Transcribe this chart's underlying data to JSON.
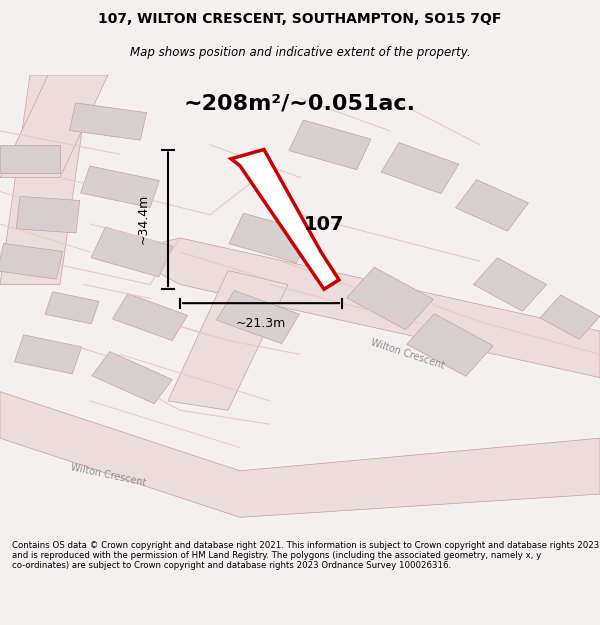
{
  "title_line1": "107, WILTON CRESCENT, SOUTHAMPTON, SO15 7QF",
  "title_line2": "Map shows position and indicative extent of the property.",
  "area_text": "~208m²/~0.051ac.",
  "label_107": "107",
  "dim_vertical": "~34.4m",
  "dim_horizontal": "~21.3m",
  "footer_text": "Contains OS data © Crown copyright and database right 2021. This information is subject to Crown copyright and database rights 2023 and is reproduced with the permission of HM Land Registry. The polygons (including the associated geometry, namely x, y co-ordinates) are subject to Crown copyright and database rights 2023 Ordnance Survey 100026316.",
  "bg_color": "#f5f0f0",
  "map_bg": "#f9f5f5",
  "road_color": "#e8c8c8",
  "building_color": "#d8d0d0",
  "plot_color": "#cc0000",
  "plot_fill": "#ffffff",
  "road_stroke": "#c8a0a0",
  "street_label_color": "#808080"
}
